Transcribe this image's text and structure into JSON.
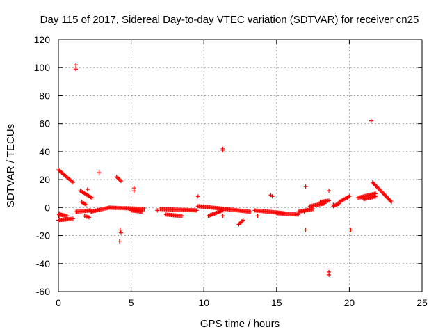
{
  "chart_data": {
    "type": "scatter",
    "title": "Day 115 of 2017, Sidereal Day-to-day VTEC variation (SDTVAR) for receiver cn25",
    "xlabel": "GPS time / hours",
    "ylabel": "SDTVAR / TECUs",
    "xlim": [
      0,
      25
    ],
    "ylim": [
      -60,
      120
    ],
    "xticks": [
      0,
      5,
      10,
      15,
      20,
      25
    ],
    "yticks": [
      -60,
      -40,
      -20,
      0,
      20,
      40,
      60,
      80,
      100,
      120
    ],
    "grid": true,
    "marker": "plus",
    "color": "#ff0000",
    "segments": [
      {
        "x0": 0.0,
        "x1": 1.0,
        "y0": 27,
        "y1": 18
      },
      {
        "x0": 0.0,
        "x1": 1.0,
        "y0": -9,
        "y1": -8
      },
      {
        "x0": 0.05,
        "x1": 0.6,
        "y0": -5,
        "y1": -6
      },
      {
        "x0": 1.2,
        "x1": 2.2,
        "y0": -3,
        "y1": -2
      },
      {
        "x0": 1.5,
        "x1": 2.3,
        "y0": 12,
        "y1": 7
      },
      {
        "x0": 1.6,
        "x1": 1.9,
        "y0": 4,
        "y1": 2
      },
      {
        "x0": 1.8,
        "x1": 2.1,
        "y0": -6,
        "y1": -7
      },
      {
        "x0": 2.2,
        "x1": 3.5,
        "y0": -3,
        "y1": 0
      },
      {
        "x0": 3.5,
        "x1": 5.9,
        "y0": 0,
        "y1": -1
      },
      {
        "x0": 4.0,
        "x1": 4.3,
        "y0": 22,
        "y1": 19
      },
      {
        "x0": 5.0,
        "x1": 5.8,
        "y0": -2,
        "y1": -3
      },
      {
        "x0": 7.0,
        "x1": 9.5,
        "y0": -1,
        "y1": -2
      },
      {
        "x0": 7.4,
        "x1": 8.5,
        "y0": -5,
        "y1": -6
      },
      {
        "x0": 9.6,
        "x1": 11.5,
        "y0": 1,
        "y1": -1
      },
      {
        "x0": 10.3,
        "x1": 11.3,
        "y0": -6,
        "y1": -2
      },
      {
        "x0": 11.5,
        "x1": 13.2,
        "y0": -1,
        "y1": -3
      },
      {
        "x0": 12.4,
        "x1": 12.7,
        "y0": -12,
        "y1": -9
      },
      {
        "x0": 13.5,
        "x1": 15.5,
        "y0": -2,
        "y1": -4
      },
      {
        "x0": 15.0,
        "x1": 16.5,
        "y0": -4,
        "y1": -5
      },
      {
        "x0": 16.5,
        "x1": 17.5,
        "y0": -3,
        "y1": -1
      },
      {
        "x0": 17.3,
        "x1": 18.3,
        "y0": 1,
        "y1": 3
      },
      {
        "x0": 18.0,
        "x1": 18.6,
        "y0": 4,
        "y1": 5
      },
      {
        "x0": 18.9,
        "x1": 19.3,
        "y0": 1,
        "y1": 3
      },
      {
        "x0": 19.3,
        "x1": 20.0,
        "y0": 4,
        "y1": 8
      },
      {
        "x0": 20.6,
        "x1": 21.8,
        "y0": 7,
        "y1": 10
      },
      {
        "x0": 21.6,
        "x1": 22.9,
        "y0": 18,
        "y1": 4
      },
      {
        "x0": 21.0,
        "x1": 21.8,
        "y0": 6,
        "y1": 8
      }
    ],
    "points": [
      [
        1.2,
        102
      ],
      [
        1.2,
        99
      ],
      [
        2.8,
        25
      ],
      [
        4.2,
        -24
      ],
      [
        4.3,
        -18
      ],
      [
        4.25,
        -16
      ],
      [
        5.2,
        14
      ],
      [
        5.2,
        12
      ],
      [
        9.6,
        8
      ],
      [
        11.3,
        42
      ],
      [
        11.3,
        41
      ],
      [
        11.3,
        -6
      ],
      [
        14.6,
        9
      ],
      [
        14.7,
        8
      ],
      [
        17.0,
        15
      ],
      [
        17.0,
        -16
      ],
      [
        18.6,
        -46
      ],
      [
        18.6,
        -48
      ],
      [
        18.6,
        12
      ],
      [
        20.1,
        -16
      ],
      [
        21.5,
        62
      ],
      [
        0.05,
        -6
      ],
      [
        0.1,
        -4
      ],
      [
        1.7,
        3
      ],
      [
        2.0,
        13
      ],
      [
        6.8,
        -2
      ],
      [
        13.7,
        -6
      ],
      [
        16.9,
        -3
      ],
      [
        18.9,
        2
      ]
    ]
  }
}
